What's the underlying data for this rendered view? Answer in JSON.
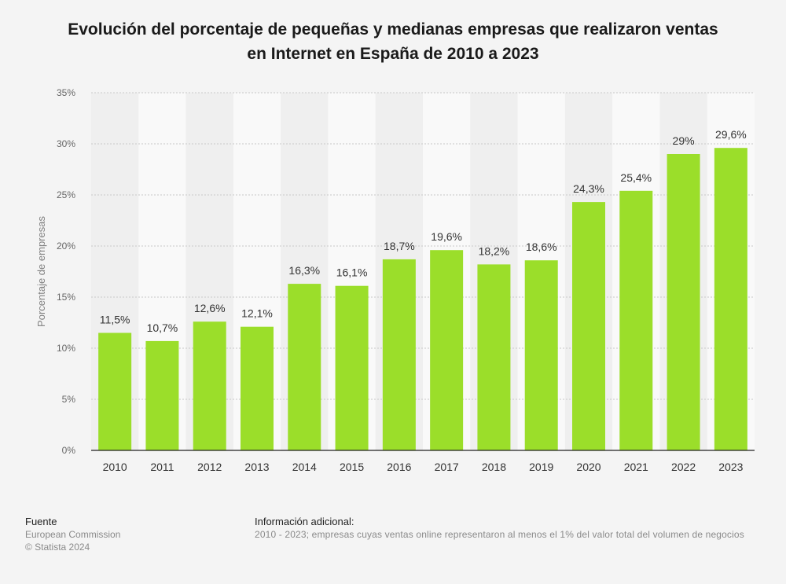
{
  "title_lines": [
    "Evolución del porcentaje de pequeñas y medianas empresas que realizaron ventas",
    "en Internet en España de 2010 a 2023"
  ],
  "chart_data": {
    "type": "bar",
    "title": "Evolución del porcentaje de pequeñas y medianas empresas que realizaron ventas en Internet en España de 2010 a 2023",
    "xlabel": "",
    "ylabel": "Porcentaje de empresas",
    "categories": [
      "2010",
      "2011",
      "2012",
      "2013",
      "2014",
      "2015",
      "2016",
      "2017",
      "2018",
      "2019",
      "2020",
      "2021",
      "2022",
      "2023"
    ],
    "values": [
      11.5,
      10.7,
      12.6,
      12.1,
      16.3,
      16.1,
      18.7,
      19.6,
      18.2,
      18.6,
      24.3,
      25.4,
      29,
      29.6
    ],
    "data_labels": [
      "11,5%",
      "10,7%",
      "12,6%",
      "12,1%",
      "16,3%",
      "16,1%",
      "18,7%",
      "19,6%",
      "18,2%",
      "18,6%",
      "24,3%",
      "25,4%",
      "29%",
      "29,6%"
    ],
    "ylim": [
      0,
      35
    ],
    "yticks": [
      0,
      5,
      10,
      15,
      20,
      25,
      30,
      35
    ],
    "ytick_labels": [
      "0%",
      "5%",
      "10%",
      "15%",
      "20%",
      "25%",
      "30%",
      "35%"
    ],
    "grid": true,
    "bar_color": "#9bde2a"
  },
  "footer": {
    "source_heading": "Fuente",
    "source_name": "European Commission",
    "copyright": "© Statista 2024",
    "info_heading": "Información adicional:",
    "info_text": "2010 - 2023; empresas cuyas ventas online representaron al menos el 1% del valor total del volumen de negocios"
  }
}
